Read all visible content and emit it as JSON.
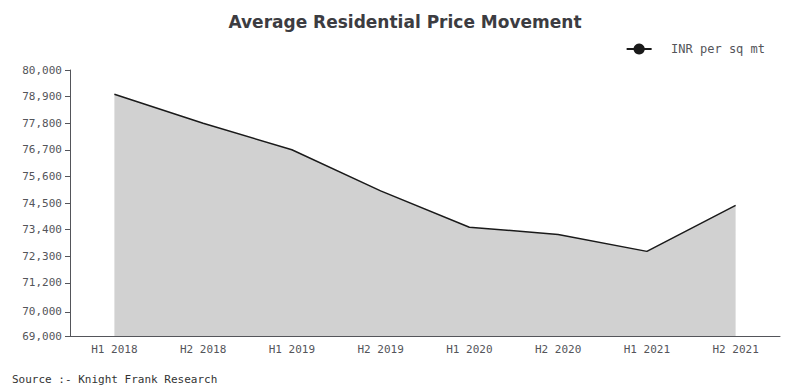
{
  "chart_data": {
    "type": "area",
    "title": "Average Residential Price Movement",
    "categories": [
      "H1 2018",
      "H2 2018",
      "H1 2019",
      "H2 2019",
      "H1 2020",
      "H2 2020",
      "H1 2021",
      "H2 2021"
    ],
    "series": [
      {
        "name": "  INR per sq mt",
        "color": "#1a1a1a",
        "values": [
          79000,
          77800,
          76700,
          75000,
          73500,
          73200,
          72500,
          74400
        ]
      }
    ],
    "ylim": [
      69000,
      80000
    ],
    "yticks": [
      {
        "value": 69000,
        "label": "69,000"
      },
      {
        "value": 70000,
        "label": "70,000"
      },
      {
        "value": 71200,
        "label": "71,200"
      },
      {
        "value": 72300,
        "label": "72,300"
      },
      {
        "value": 73400,
        "label": "73,400"
      },
      {
        "value": 74500,
        "label": "74,500"
      },
      {
        "value": 75600,
        "label": "75,600"
      },
      {
        "value": 76700,
        "label": "76,700"
      },
      {
        "value": 77800,
        "label": "77,800"
      },
      {
        "value": 78900,
        "label": "78,900"
      },
      {
        "value": 80000,
        "label": "80,000"
      }
    ],
    "grid": false,
    "legend": "upper right",
    "annotations": [
      "Source :- Knight Frank Research"
    ]
  }
}
